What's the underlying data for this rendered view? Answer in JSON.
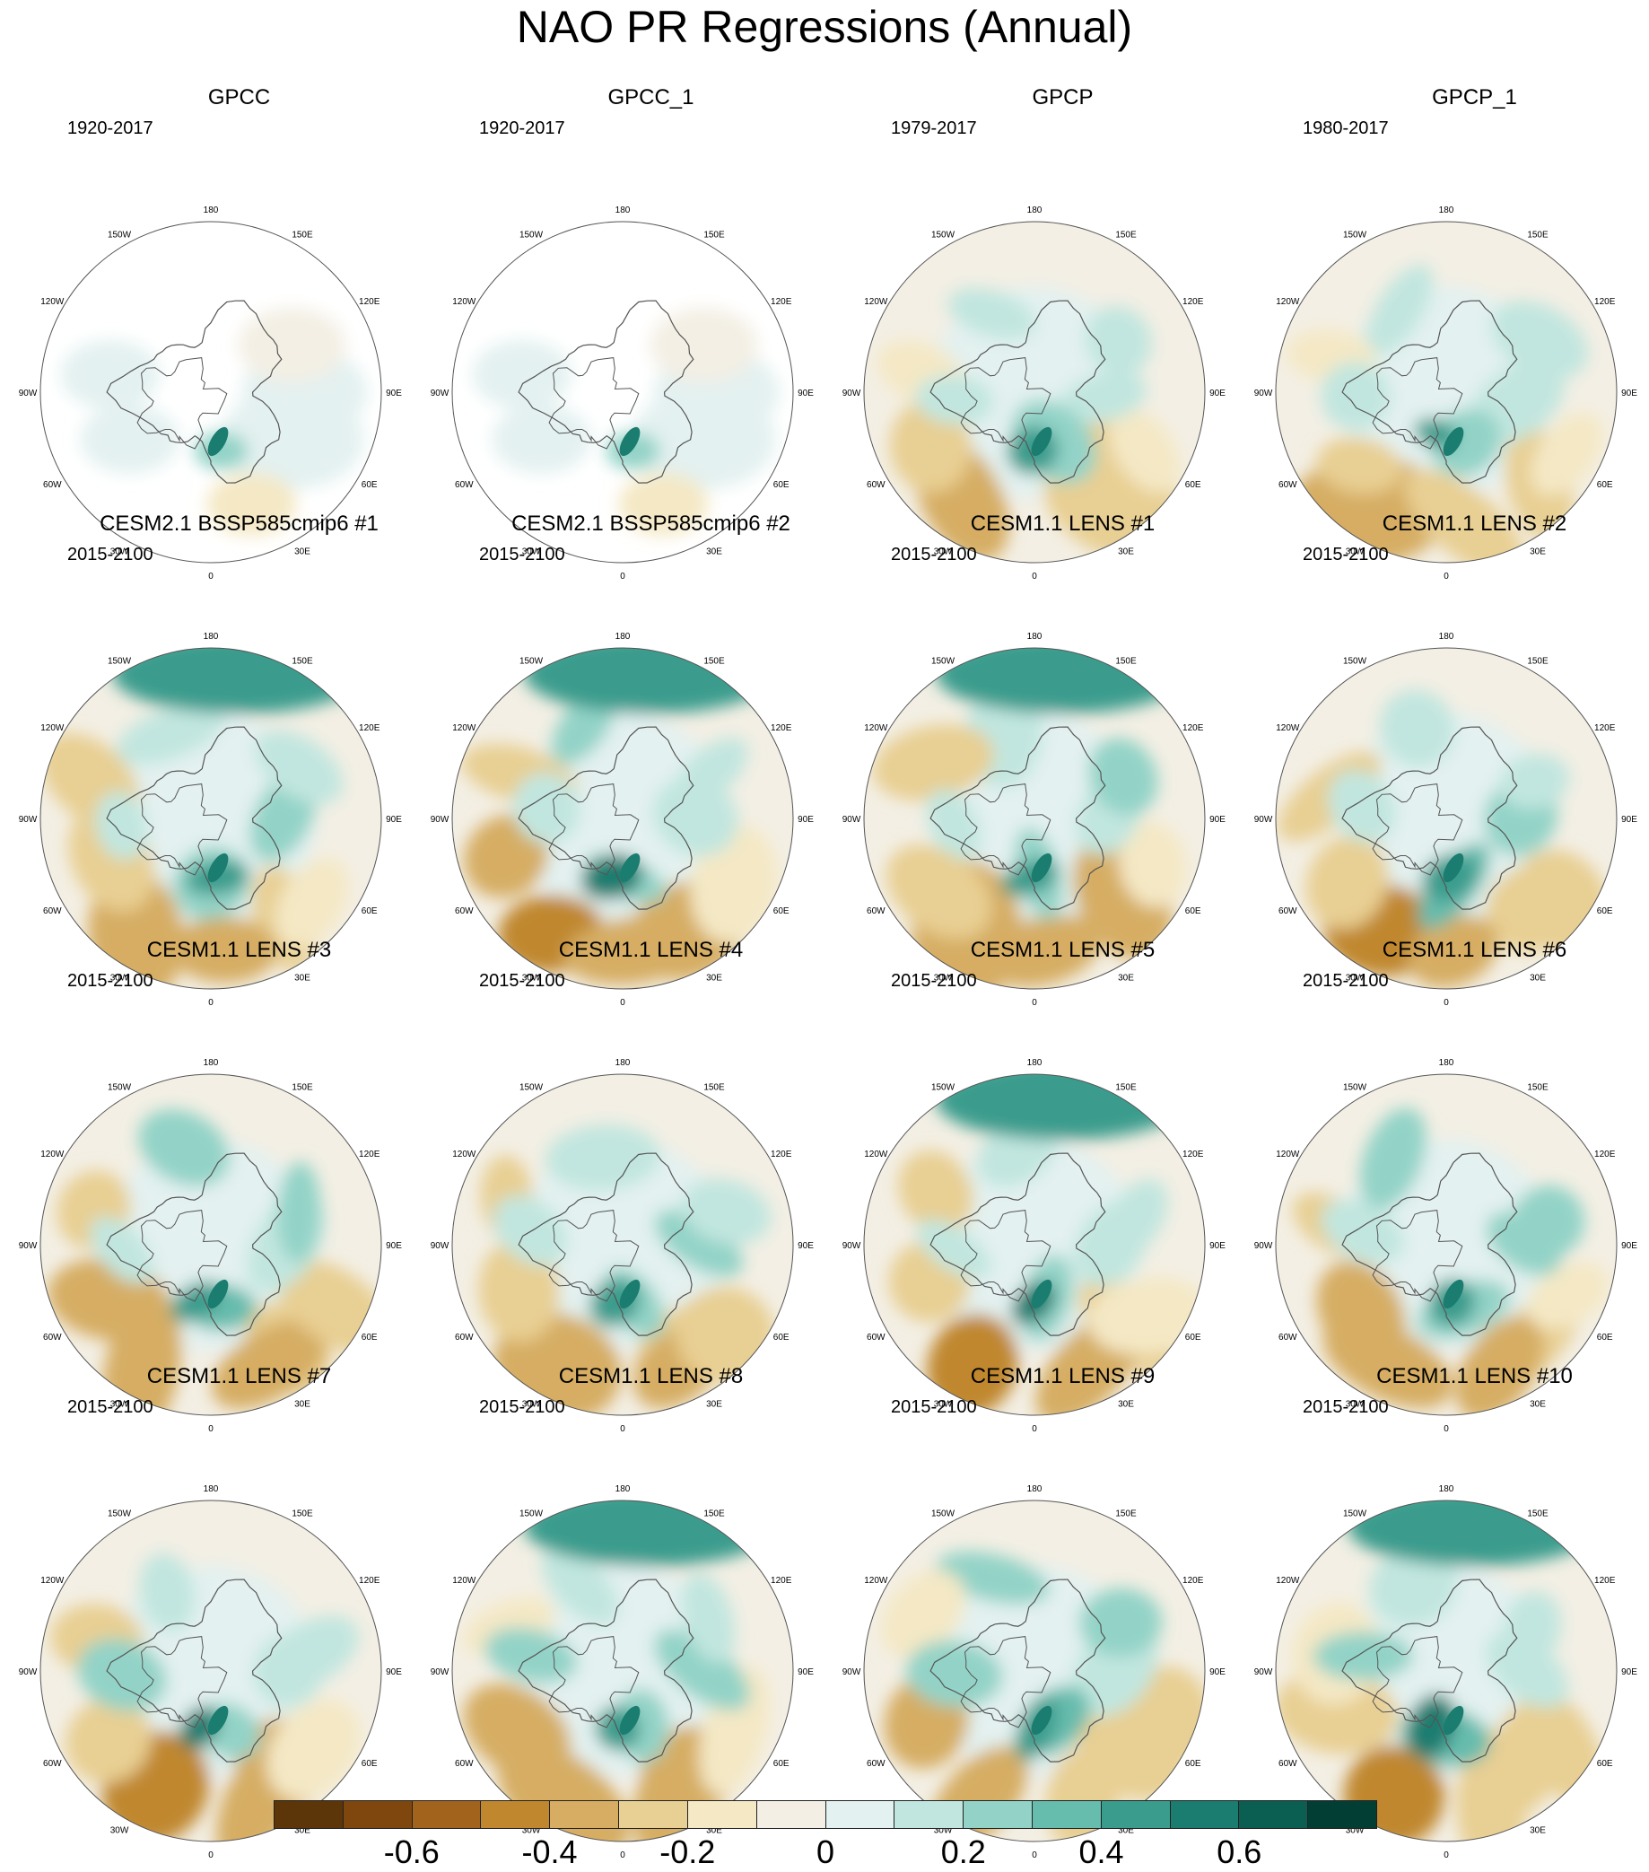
{
  "title": "NAO PR Regressions (Annual)",
  "lon_labels": [
    "180",
    "150E",
    "120E",
    "90E",
    "60E",
    "30E",
    "0",
    "30W",
    "60W",
    "90W",
    "120W",
    "150W"
  ],
  "chart_data": {
    "type": "heatmap",
    "title": "NAO PR Regressions (Annual)",
    "projection": "north polar stereographic",
    "panels": [
      {
        "name": "GPCC",
        "period": "1920-2017",
        "land_only": true
      },
      {
        "name": "GPCC_1",
        "period": "1920-2017",
        "land_only": true
      },
      {
        "name": "GPCP",
        "period": "1979-2017"
      },
      {
        "name": "GPCP_1",
        "period": "1980-2017"
      },
      {
        "name": "CESM2.1 BSSP585cmip6 #1",
        "period": "2015-2100"
      },
      {
        "name": "CESM2.1 BSSP585cmip6 #2",
        "period": "2015-2100"
      },
      {
        "name": "CESM1.1 LENS #1",
        "period": "2015-2100"
      },
      {
        "name": "CESM1.1 LENS #2",
        "period": "2015-2100"
      },
      {
        "name": "CESM1.1 LENS #3",
        "period": "2015-2100"
      },
      {
        "name": "CESM1.1 LENS #4",
        "period": "2015-2100"
      },
      {
        "name": "CESM1.1 LENS #5",
        "period": "2015-2100"
      },
      {
        "name": "CESM1.1 LENS #6",
        "period": "2015-2100"
      },
      {
        "name": "CESM1.1 LENS #7",
        "period": "2015-2100"
      },
      {
        "name": "CESM1.1 LENS #8",
        "period": "2015-2100"
      },
      {
        "name": "CESM1.1 LENS #9",
        "period": "2015-2100"
      },
      {
        "name": "CESM1.1 LENS #10",
        "period": "2015-2100"
      }
    ],
    "colorbar": {
      "levels": [
        -0.8,
        -0.7,
        -0.6,
        -0.5,
        -0.4,
        -0.3,
        -0.2,
        -0.1,
        0,
        0.1,
        0.2,
        0.3,
        0.4,
        0.5,
        0.6,
        0.7,
        0.8
      ],
      "tick_labels": [
        "-0.6",
        "-0.4",
        "-0.2",
        "0",
        "0.2",
        "0.4",
        "0.6"
      ],
      "tick_values": [
        -0.6,
        -0.4,
        -0.2,
        0,
        0.2,
        0.4,
        0.6
      ],
      "colors": [
        "#5c3508",
        "#7f470e",
        "#a2641c",
        "#c0872f",
        "#d6ad63",
        "#e8cf93",
        "#f4e8c5",
        "#f3efe4",
        "#e3f1f0",
        "#c1e6df",
        "#93d3c7",
        "#66bcad",
        "#3a9c8d",
        "#1a7d70",
        "#0a5e52",
        "#033e35"
      ]
    }
  }
}
